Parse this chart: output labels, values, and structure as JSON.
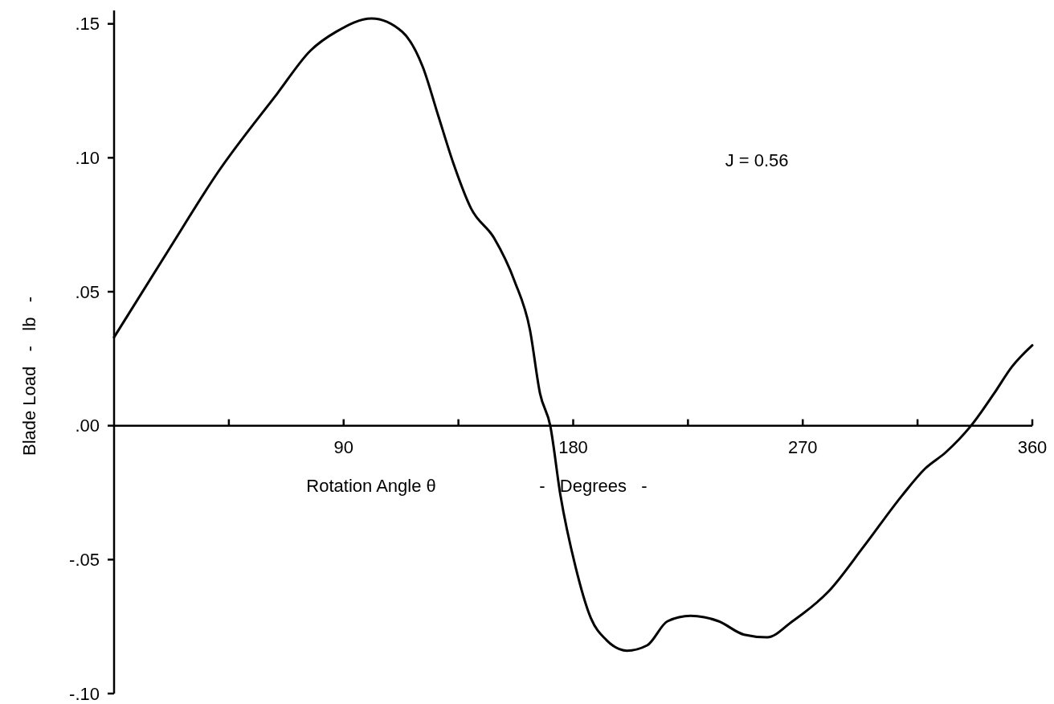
{
  "chart_data": {
    "type": "line",
    "xlabel": "Rotation Angle θ                     -   Degrees   -",
    "ylabel": "Blade Load   -   lb   -",
    "annotations": [
      "J = 0.56"
    ],
    "xlim": [
      0,
      360
    ],
    "ylim": [
      -0.1,
      0.155
    ],
    "xticks": [
      {
        "value": 45,
        "label": null
      },
      {
        "value": 90,
        "label": "90"
      },
      {
        "value": 135,
        "label": null
      },
      {
        "value": 180,
        "label": "180"
      },
      {
        "value": 225,
        "label": null
      },
      {
        "value": 270,
        "label": "270"
      },
      {
        "value": 315,
        "label": null
      },
      {
        "value": 360,
        "label": "360"
      }
    ],
    "yticks": [
      {
        "value": -0.1,
        "label": "-.10"
      },
      {
        "value": -0.05,
        "label": "-.05"
      },
      {
        "value": 0,
        "label": ".00"
      },
      {
        "value": 0.05,
        "label": ".05"
      },
      {
        "value": 0.1,
        "label": ".10"
      },
      {
        "value": 0.15,
        "label": ".15"
      }
    ],
    "series": [
      {
        "color": "#000000",
        "x": [
          0,
          21,
          41,
          64,
          77,
          87,
          101,
          113,
          121,
          127,
          133,
          140,
          149,
          157,
          163,
          167,
          171,
          175,
          181,
          187,
          193,
          201,
          209,
          217,
          226,
          237,
          247,
          256,
          266,
          280,
          294,
          309,
          318,
          326,
          336,
          345,
          352,
          360
        ],
        "values": [
          0.033,
          0.065,
          0.095,
          0.124,
          0.14,
          0.147,
          0.152,
          0.147,
          0.134,
          0.116,
          0.098,
          0.081,
          0.07,
          0.054,
          0.036,
          0.012,
          0,
          -0.026,
          -0.053,
          -0.072,
          -0.08,
          -0.084,
          -0.082,
          -0.073,
          -0.071,
          -0.073,
          -0.078,
          -0.079,
          -0.073,
          -0.062,
          -0.045,
          -0.026,
          -0.016,
          -0.01,
          0,
          0.012,
          0.022,
          0.03
        ]
      }
    ]
  }
}
